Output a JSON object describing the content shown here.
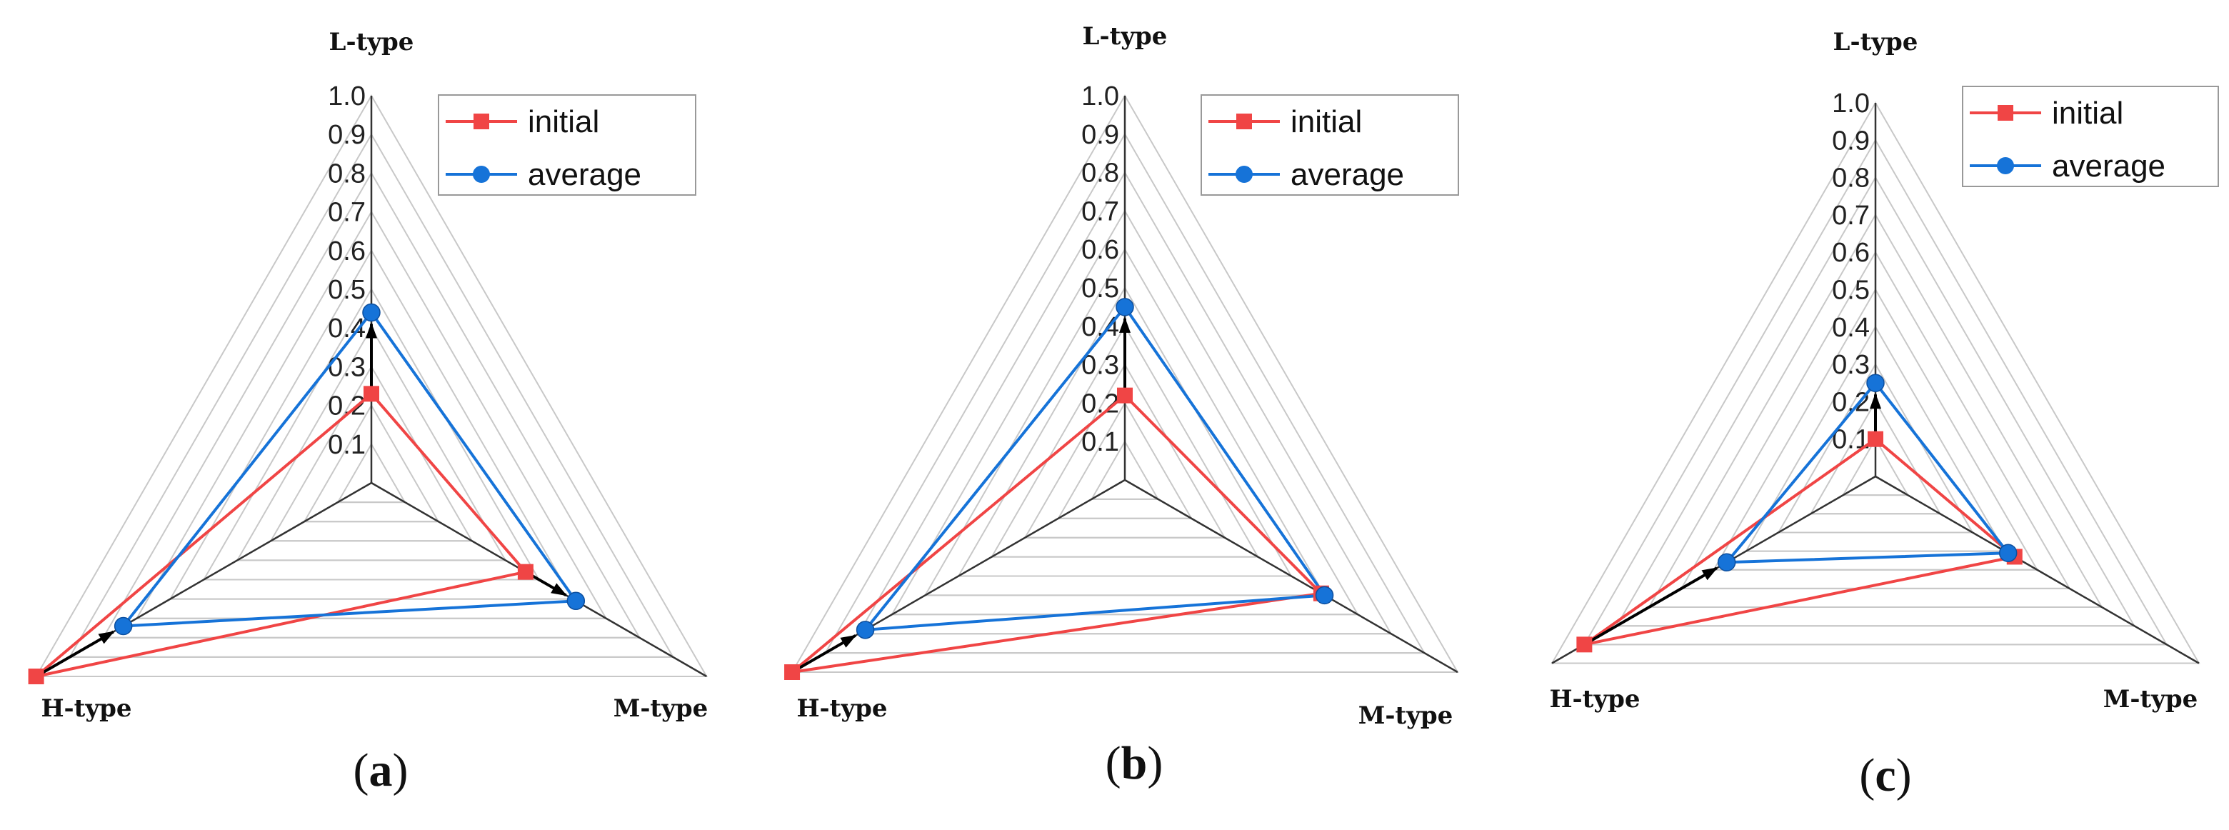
{
  "colors": {
    "initial": "#f04545",
    "average": "#1673d8",
    "arrow": "#000000",
    "grid": "#c8c8c8",
    "axis": "#333333"
  },
  "chart_data": [
    {
      "type": "radar",
      "panel_label": "a",
      "axes": [
        "L-type",
        "M-type",
        "H-type"
      ],
      "ticks": [
        "1.0",
        "0.9",
        "0.8",
        "0.7",
        "0.6",
        "0.5",
        "0.4",
        "0.3",
        "0.2",
        "0.1"
      ],
      "range": [
        0,
        1
      ],
      "legend_placement": "top-right",
      "series": [
        {
          "name": "initial",
          "marker": "square",
          "values": [
            0.23,
            0.46,
            1.0
          ]
        },
        {
          "name": "average",
          "marker": "circle",
          "values": [
            0.44,
            0.61,
            0.74
          ]
        }
      ],
      "arrows": "initial to average on each axis"
    },
    {
      "type": "radar",
      "panel_label": "b",
      "axes": [
        "L-type",
        "M-type",
        "H-type"
      ],
      "ticks": [
        "1.0",
        "0.9",
        "0.8",
        "0.7",
        "0.6",
        "0.5",
        "0.4",
        "0.3",
        "0.2",
        "0.1"
      ],
      "range": [
        0,
        1
      ],
      "legend_placement": "top-right",
      "series": [
        {
          "name": "initial",
          "marker": "square",
          "values": [
            0.22,
            0.59,
            1.0
          ]
        },
        {
          "name": "average",
          "marker": "circle",
          "values": [
            0.45,
            0.6,
            0.78
          ]
        }
      ],
      "arrows": "initial to average on each axis"
    },
    {
      "type": "radar",
      "panel_label": "c",
      "axes": [
        "L-type",
        "M-type",
        "H-type"
      ],
      "ticks": [
        "1.0",
        "0.9",
        "0.8",
        "0.7",
        "0.6",
        "0.5",
        "0.4",
        "0.3",
        "0.2",
        "0.1"
      ],
      "range": [
        0,
        1
      ],
      "legend_placement": "top-right",
      "series": [
        {
          "name": "initial",
          "marker": "square",
          "values": [
            0.1,
            0.43,
            0.9
          ]
        },
        {
          "name": "average",
          "marker": "circle",
          "values": [
            0.25,
            0.41,
            0.46
          ]
        }
      ],
      "arrows": "initial to average on each axis"
    }
  ]
}
